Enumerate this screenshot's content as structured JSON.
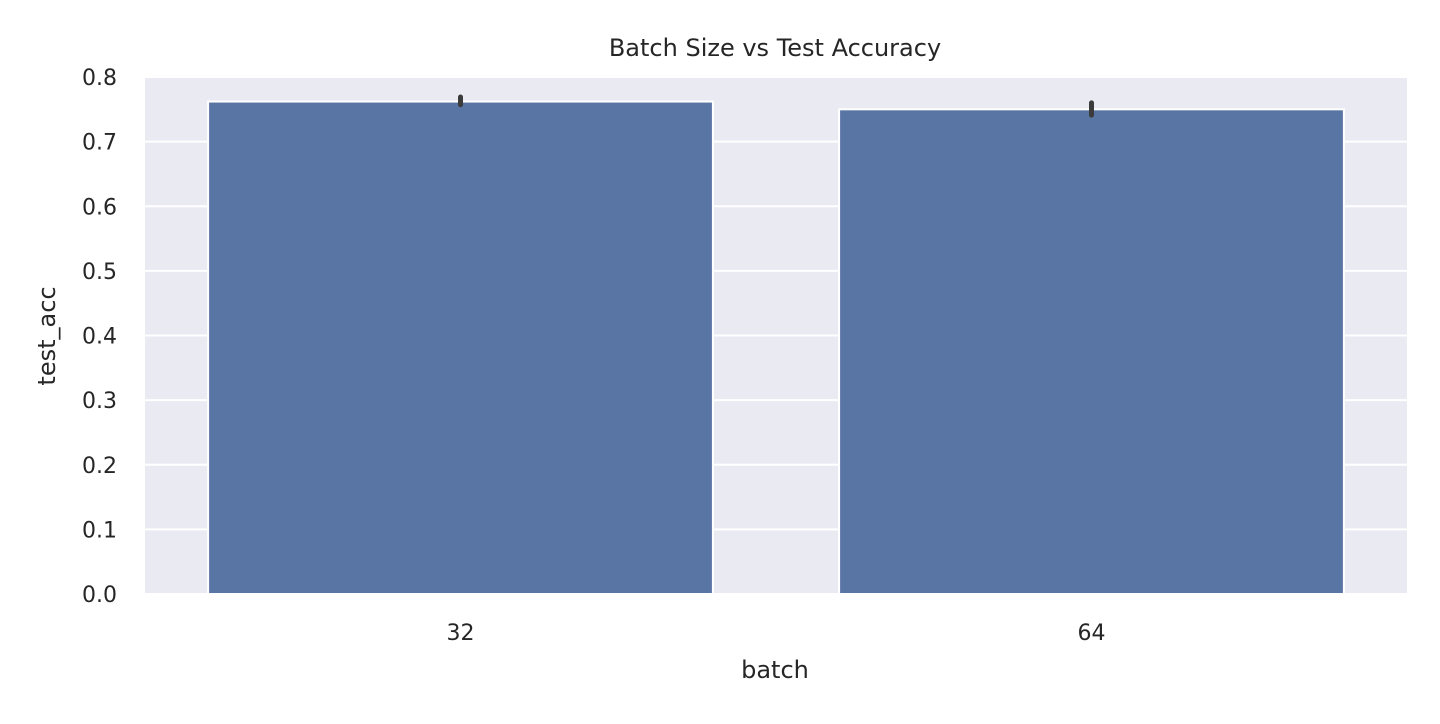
{
  "chart_data": {
    "type": "bar",
    "title": "Batch Size vs Test Accuracy",
    "xlabel": "batch",
    "ylabel": "test_acc",
    "categories": [
      "32",
      "64"
    ],
    "values": [
      0.762,
      0.75
    ],
    "error_bars": [
      [
        0.757,
        0.769
      ],
      [
        0.741,
        0.76
      ]
    ],
    "ylim": [
      0.0,
      0.8
    ],
    "yticks": [
      "0.0",
      "0.1",
      "0.2",
      "0.3",
      "0.4",
      "0.5",
      "0.6",
      "0.7",
      "0.8"
    ],
    "grid": true,
    "colors": {
      "bar": "#5975a4",
      "plot_background": "#eaeaf2",
      "grid": "#ffffff",
      "error_bar": "#3b3b3b"
    }
  }
}
